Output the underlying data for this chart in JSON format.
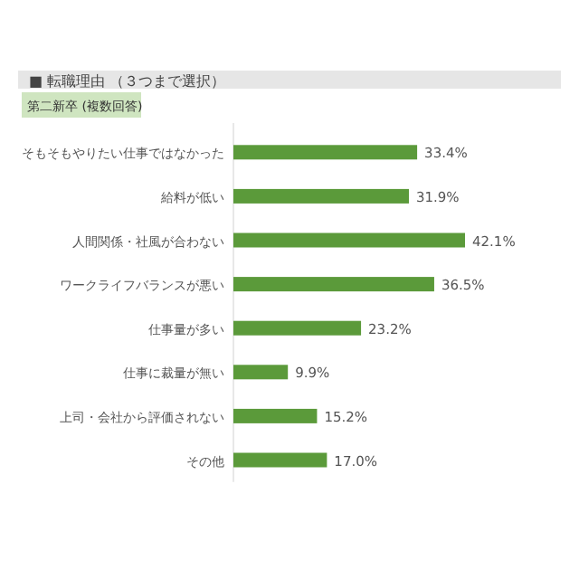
{
  "chart_data": {
    "type": "bar",
    "orientation": "horizontal",
    "title": "■ 転職理由 （３つまで選択）",
    "subtitle": "第二新卒 (複数回答)",
    "categories": [
      "そもそもやりたい仕事ではなかった",
      "給料が低い",
      "人間関係・社風が合わない",
      "ワークライフバランスが悪い",
      "仕事量が多い",
      "仕事に裁量が無い",
      "上司・会社から評価されない",
      "その他"
    ],
    "values": [
      33.4,
      31.9,
      42.1,
      36.5,
      23.2,
      9.9,
      15.2,
      17.0
    ],
    "value_labels": [
      "33.4%",
      "31.9%",
      "42.1%",
      "36.5%",
      "23.2%",
      "9.9%",
      "15.2%",
      "17.0%"
    ],
    "color": "#5b9a3a"
  }
}
